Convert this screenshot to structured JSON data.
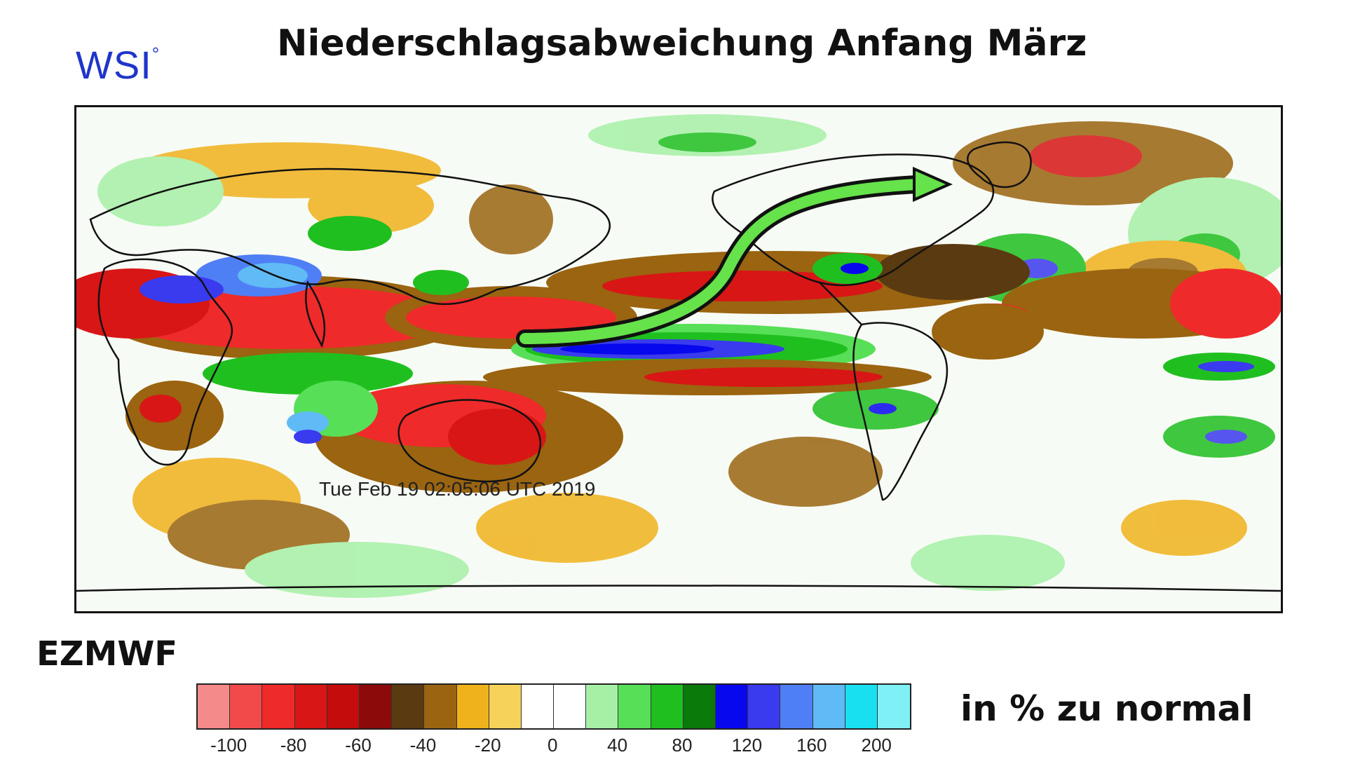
{
  "header": {
    "logo_text": "WSI",
    "logo_mark": "°",
    "title": "Niederschlagsabweichung Anfang März"
  },
  "map": {
    "timestamp": "Tue Feb 19 02:05:06 UTC 2019",
    "projection": "global-pacific-centered",
    "arrow_color": "#66e24a"
  },
  "model_label": "EZMWF",
  "unit_label": "in % zu normal",
  "colorbar": {
    "colors": [
      "#f58a8a",
      "#f24a4a",
      "#ef2a2a",
      "#d81616",
      "#c40c0c",
      "#8c0a0a",
      "#5a3a10",
      "#9a6410",
      "#f0b21c",
      "#f7d25a",
      "#ffffff",
      "#ffffff",
      "#a6f0a6",
      "#58df58",
      "#20bf20",
      "#0a7a0a",
      "#0808ee",
      "#3a3aee",
      "#4f7ff5",
      "#5fbaf5",
      "#19e0f0",
      "#7ff0f5"
    ],
    "tick_labels": [
      "-100",
      "-80",
      "-60",
      "-40",
      "-20",
      "0",
      "40",
      "80",
      "120",
      "160",
      "200"
    ]
  },
  "legend_colors": {
    "very_dry": "#c40c0c",
    "dry": "#9a6410",
    "moderate_dry": "#f0b21c",
    "wet": "#58df58",
    "very_wet": "#0808ee",
    "extreme_wet": "#7ff0f5"
  }
}
